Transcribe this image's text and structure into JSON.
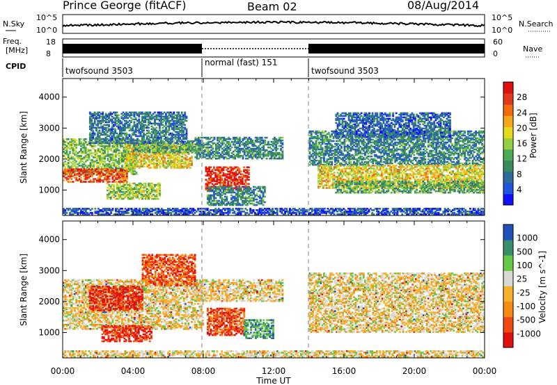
{
  "header": {
    "station": "Prince George (fitACF)",
    "beam": "Beam 02",
    "date": "08/Aug/2014"
  },
  "panels": {
    "nsky_label": "N.Sky",
    "nsearch_label": "N.Search",
    "freq_label_1": "Freq.",
    "freq_label_2": "[MHz]",
    "nave_label": "Nave",
    "cpid_label": "CPID",
    "nsky_ticks": [
      "10^5",
      "10^0"
    ],
    "nsearch_ticks": [
      "10^5",
      "10^0"
    ],
    "freq_ticks": [
      "18",
      "8"
    ],
    "nave_ticks": [
      "60",
      "0"
    ]
  },
  "cpid_segments": [
    {
      "label": "twofsound 3503",
      "start_h": 0,
      "end_h": 8
    },
    {
      "label": "normal (fast) 151",
      "start_h": 8,
      "end_h": 14
    },
    {
      "label": "twofsound 3503",
      "start_h": 14,
      "end_h": 24
    }
  ],
  "chart_data": [
    {
      "type": "heatmap",
      "title": "Power",
      "xlabel": "Time UT",
      "ylabel": "Slant Range [km]",
      "xlim": [
        0,
        24
      ],
      "ylim": [
        180,
        4600
      ],
      "x_ticks": [
        "00:00",
        "04:00",
        "08:00",
        "12:00",
        "16:00",
        "20:00",
        "00:00"
      ],
      "y_ticks": [
        "1000",
        "2000",
        "3000",
        "4000"
      ],
      "colorbar_label": "Power [dB]",
      "colorbar_ticks": [
        "28",
        "24",
        "20",
        "16",
        "12",
        "8",
        "4"
      ],
      "colors": [
        "#1010ff",
        "#2255dd",
        "#2f6a9a",
        "#3a8a5a",
        "#4eaa55",
        "#96cf43",
        "#e5db1e",
        "#f6a61a",
        "#f26b0f",
        "#e3381a",
        "#e01010"
      ],
      "bands": [
        {
          "t0": 0.0,
          "t1": 4.2,
          "r0": 1500,
          "r1": 2650,
          "level": 0.45
        },
        {
          "t0": 0.0,
          "t1": 3.6,
          "r0": 1250,
          "r1": 1700,
          "level": 0.85
        },
        {
          "t0": 3.6,
          "t1": 7.3,
          "r0": 1700,
          "r1": 2500,
          "level": 0.6
        },
        {
          "t0": 4.0,
          "t1": 8.0,
          "r0": 2200,
          "r1": 2600,
          "level": 0.4
        },
        {
          "t0": 1.5,
          "t1": 7.0,
          "r0": 2500,
          "r1": 3500,
          "level": 0.25
        },
        {
          "t0": 2.5,
          "t1": 5.5,
          "r0": 700,
          "r1": 1200,
          "level": 0.5
        },
        {
          "t0": 8.1,
          "t1": 10.6,
          "r0": 1000,
          "r1": 1750,
          "level": 0.92
        },
        {
          "t0": 8.2,
          "t1": 11.5,
          "r0": 500,
          "r1": 1100,
          "level": 0.3
        },
        {
          "t0": 7.5,
          "t1": 12.5,
          "r0": 2000,
          "r1": 2700,
          "level": 0.3
        },
        {
          "t0": 14.0,
          "t1": 24.0,
          "r0": 1800,
          "r1": 2900,
          "level": 0.3
        },
        {
          "t0": 14.5,
          "t1": 24.0,
          "r0": 1050,
          "r1": 1800,
          "level": 0.6
        },
        {
          "t0": 15.5,
          "t1": 24.0,
          "r0": 900,
          "r1": 1300,
          "level": 0.4
        },
        {
          "t0": 15.5,
          "t1": 22.0,
          "r0": 2700,
          "r1": 3500,
          "level": 0.2
        },
        {
          "t0": 0.0,
          "t1": 24.0,
          "r0": 200,
          "r1": 420,
          "level": 0.15
        }
      ]
    },
    {
      "type": "heatmap",
      "title": "Velocity",
      "xlabel": "Time UT",
      "ylabel": "Slant Range [km]",
      "xlim": [
        0,
        24
      ],
      "ylim": [
        180,
        4600
      ],
      "x_ticks": [
        "00:00",
        "04:00",
        "08:00",
        "12:00",
        "16:00",
        "20:00",
        "00:00"
      ],
      "y_ticks": [
        "1000",
        "2000",
        "3000",
        "4000"
      ],
      "colorbar_label": "Velocity [m s^-1]",
      "colorbar_ticks": [
        "1000",
        "500",
        "100",
        "25",
        "-25",
        "-100",
        "-500",
        "-1000"
      ],
      "colors": [
        "#e01010",
        "#f04a12",
        "#f58a16",
        "#f6b02b",
        "#d9d9d4",
        "#66c846",
        "#3a8f6a",
        "#2050b8"
      ],
      "bands": [
        {
          "t0": 0.0,
          "t1": 8.0,
          "r0": 1100,
          "r1": 2700,
          "level": 0.5
        },
        {
          "t0": 2.2,
          "t1": 5.0,
          "r0": 700,
          "r1": 1200,
          "level": 0.12
        },
        {
          "t0": 1.5,
          "t1": 4.5,
          "r0": 1700,
          "r1": 2500,
          "level": 0.1
        },
        {
          "t0": 4.5,
          "t1": 7.5,
          "r0": 2500,
          "r1": 3500,
          "level": 0.2
        },
        {
          "t0": 8.2,
          "t1": 10.3,
          "r0": 900,
          "r1": 1800,
          "level": 0.18
        },
        {
          "t0": 10.3,
          "t1": 12.0,
          "r0": 800,
          "r1": 1400,
          "level": 0.78
        },
        {
          "t0": 7.5,
          "t1": 12.5,
          "r0": 2000,
          "r1": 2700,
          "level": 0.5
        },
        {
          "t0": 14.0,
          "t1": 24.0,
          "r0": 1000,
          "r1": 2900,
          "level": 0.5
        },
        {
          "t0": 0.0,
          "t1": 24.0,
          "r0": 200,
          "r1": 420,
          "level": 0.5
        }
      ]
    }
  ]
}
